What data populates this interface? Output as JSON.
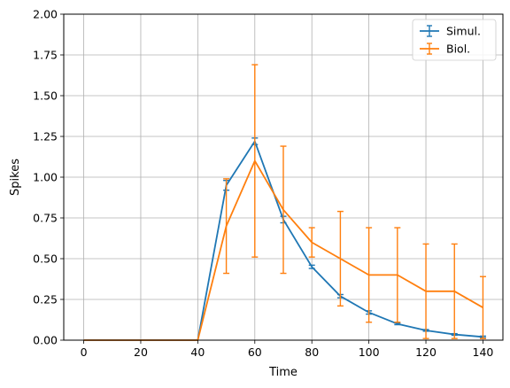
{
  "chart_data": {
    "type": "line",
    "xlabel": "Time",
    "ylabel": "Spikes",
    "xlim": [
      -7,
      147
    ],
    "ylim": [
      0,
      2.0
    ],
    "xticks": [
      0,
      20,
      40,
      60,
      80,
      100,
      120,
      140
    ],
    "xtick_labels": [
      "0",
      "20",
      "40",
      "60",
      "80",
      "100",
      "120",
      "140"
    ],
    "yticks": [
      0,
      0.25,
      0.5,
      0.75,
      1.0,
      1.25,
      1.5,
      1.75,
      2.0
    ],
    "ytick_labels": [
      "0.00",
      "0.25",
      "0.50",
      "0.75",
      "1.00",
      "1.25",
      "1.50",
      "1.75",
      "2.00"
    ],
    "grid": true,
    "legend_position": "top-right",
    "series": [
      {
        "name": "Simul.",
        "color": "#1f77b4",
        "x": [
          0,
          10,
          20,
          30,
          40,
          50,
          60,
          70,
          80,
          90,
          100,
          110,
          120,
          130,
          140
        ],
        "y": [
          0,
          0,
          0,
          0,
          0,
          0.95,
          1.22,
          0.74,
          0.45,
          0.27,
          0.17,
          0.1,
          0.06,
          0.035,
          0.02
        ],
        "yerr": [
          0,
          0,
          0,
          0,
          0,
          0.03,
          0.02,
          0.02,
          0.01,
          0.01,
          0.01,
          0.005,
          0.005,
          0.005,
          0.005
        ]
      },
      {
        "name": "Biol.",
        "color": "#ff7f0e",
        "x": [
          0,
          10,
          20,
          30,
          40,
          50,
          60,
          70,
          80,
          90,
          100,
          110,
          120,
          130,
          140
        ],
        "y": [
          0,
          0,
          0,
          0,
          0,
          0.7,
          1.1,
          0.8,
          0.6,
          0.5,
          0.4,
          0.4,
          0.3,
          0.3,
          0.2
        ],
        "yerr": [
          0,
          0,
          0,
          0,
          0,
          0.29,
          0.59,
          0.39,
          0.09,
          0.29,
          0.29,
          0.29,
          0.29,
          0.29,
          0.19
        ]
      }
    ]
  }
}
